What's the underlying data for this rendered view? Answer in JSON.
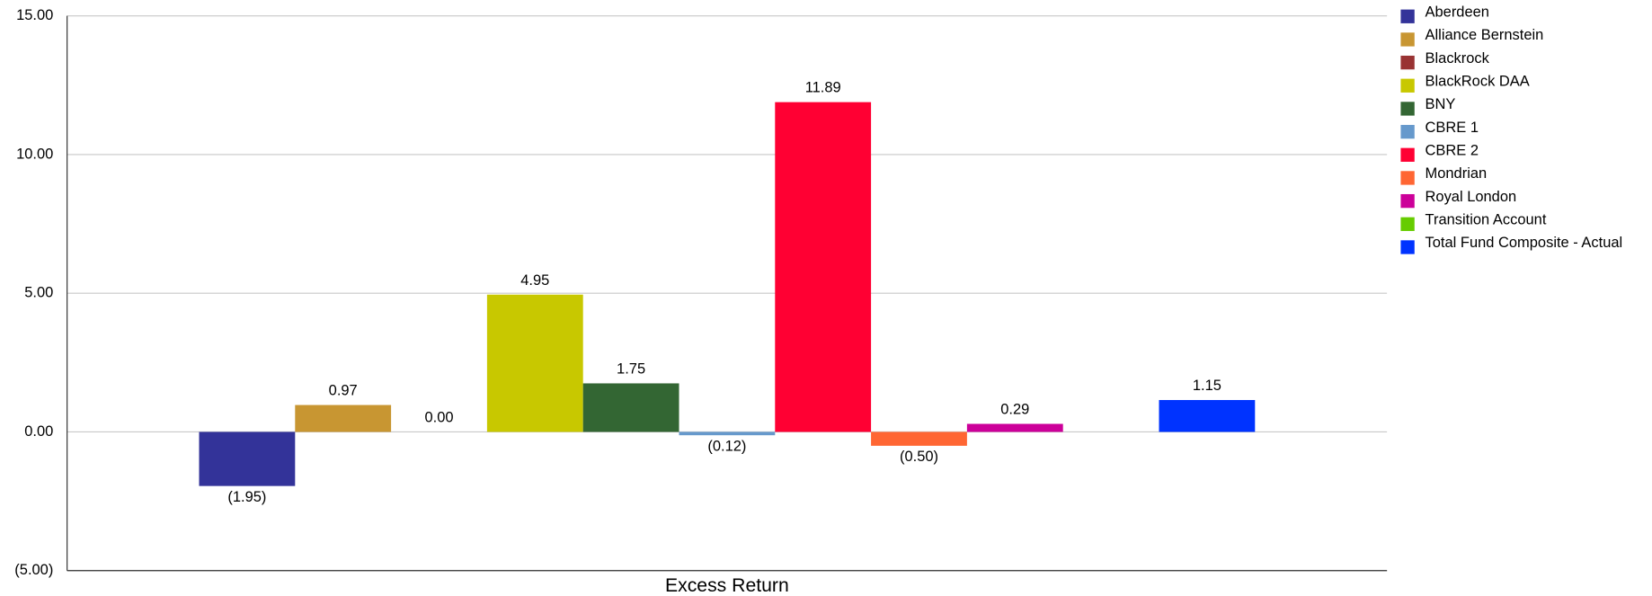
{
  "chart_data": {
    "type": "bar",
    "categories": [
      "Excess Return"
    ],
    "series": [
      {
        "name": "Aberdeen",
        "color": "#333399",
        "values": [
          -1.95
        ],
        "value_labels": [
          "(1.95)"
        ]
      },
      {
        "name": "Alliance Bernstein",
        "color": "#c89632",
        "values": [
          0.97
        ],
        "value_labels": [
          "0.97"
        ]
      },
      {
        "name": "Blackrock",
        "color": "#993333",
        "values": [
          0.0
        ],
        "value_labels": [
          "0.00"
        ]
      },
      {
        "name": "BlackRock DAA",
        "color": "#c8c800",
        "values": [
          4.95
        ],
        "value_labels": [
          "4.95"
        ]
      },
      {
        "name": "BNY",
        "color": "#336633",
        "values": [
          1.75
        ],
        "value_labels": [
          "1.75"
        ]
      },
      {
        "name": "CBRE 1",
        "color": "#6699cc",
        "values": [
          -0.12
        ],
        "value_labels": [
          "(0.12)"
        ]
      },
      {
        "name": "CBRE 2",
        "color": "#ff0033",
        "values": [
          11.89
        ],
        "value_labels": [
          "11.89"
        ]
      },
      {
        "name": "Mondrian",
        "color": "#ff6633",
        "values": [
          -0.5
        ],
        "value_labels": [
          "(0.50)"
        ]
      },
      {
        "name": "Royal London",
        "color": "#cc0099",
        "values": [
          0.29
        ],
        "value_labels": [
          "0.29"
        ]
      },
      {
        "name": "Transition Account",
        "color": "#66cc00",
        "values": [
          null
        ],
        "value_labels": [
          null
        ]
      },
      {
        "name": "Total Fund Composite - Actual",
        "color": "#0033ff",
        "values": [
          1.15
        ],
        "value_labels": [
          "1.15"
        ]
      }
    ],
    "ylim": [
      -5,
      15
    ],
    "yticks": [
      {
        "value": -5,
        "label": "(5.00)"
      },
      {
        "value": 0,
        "label": "0.00"
      },
      {
        "value": 5,
        "label": "5.00"
      },
      {
        "value": 10,
        "label": "10.00"
      },
      {
        "value": 15,
        "label": "15.00"
      }
    ],
    "grid": true,
    "legend": "right"
  }
}
